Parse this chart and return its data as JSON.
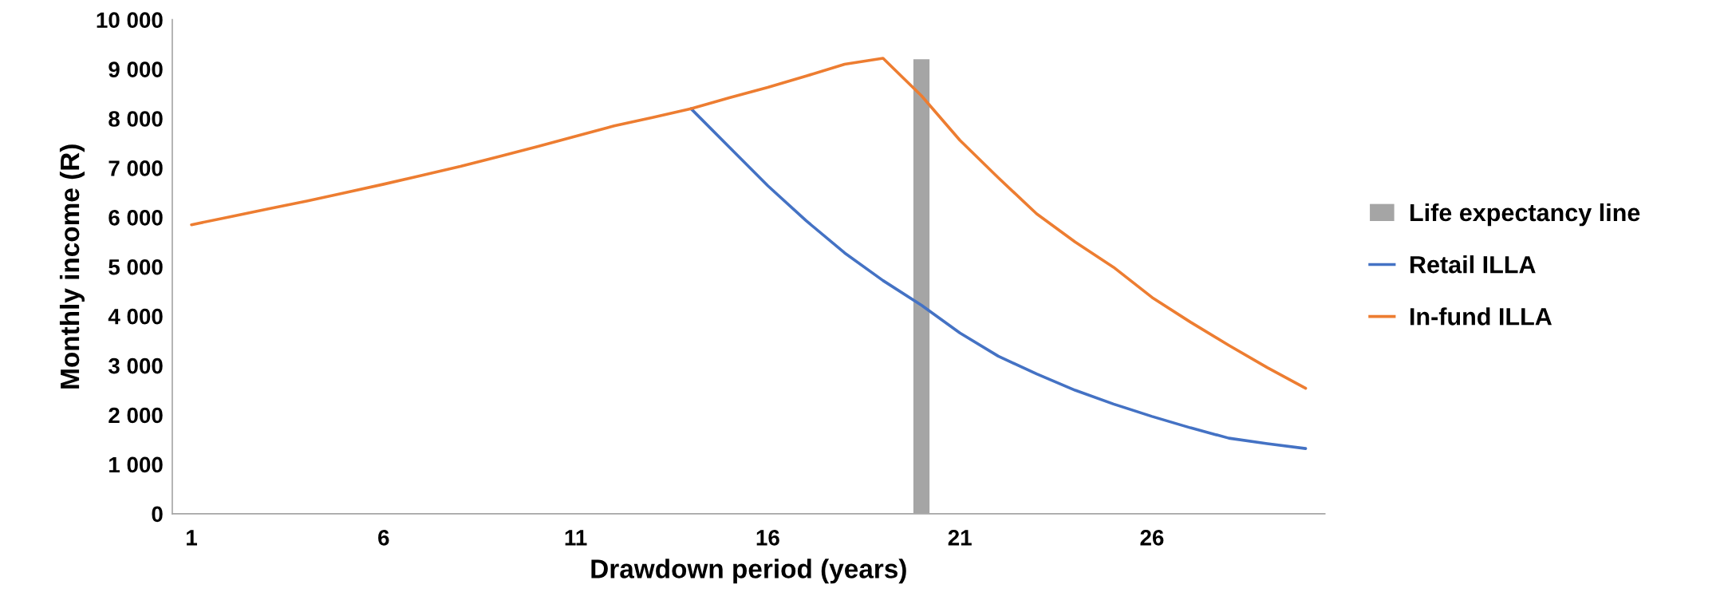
{
  "chart_data": {
    "type": "line",
    "xlabel": "Drawdown period (years)",
    "ylabel": "Monthly income (R)",
    "categories": [
      "1",
      null,
      null,
      null,
      null,
      "6",
      null,
      null,
      null,
      null,
      "11",
      null,
      null,
      null,
      null,
      "16",
      null,
      null,
      null,
      null,
      "21",
      null,
      null,
      null,
      null,
      "26",
      null,
      null,
      null,
      null
    ],
    "series": [
      {
        "name": "Life expectancy line",
        "type": "bar",
        "color": "#a5a5a5",
        "values": [
          null,
          null,
          null,
          null,
          null,
          null,
          null,
          null,
          null,
          null,
          null,
          null,
          null,
          null,
          null,
          null,
          null,
          null,
          null,
          9200,
          null,
          null,
          null,
          null,
          null,
          null,
          null,
          null,
          null,
          null
        ]
      },
      {
        "name": "Retail ILLA",
        "color": "#4472c4",
        "values": [
          null,
          null,
          null,
          null,
          null,
          null,
          null,
          null,
          null,
          null,
          null,
          null,
          null,
          8200,
          7420,
          6640,
          5930,
          5280,
          4720,
          4220,
          3660,
          3190,
          2830,
          2500,
          2220,
          1970,
          1740,
          1530,
          1420,
          1320
        ]
      },
      {
        "name": "In-fund ILLA",
        "color": "#ed7d31",
        "values": [
          5850,
          6010,
          6170,
          6330,
          6500,
          6670,
          6850,
          7030,
          7230,
          7430,
          7640,
          7850,
          8020,
          8200,
          8420,
          8630,
          8860,
          9100,
          9220,
          8460,
          7560,
          6800,
          6070,
          5500,
          4990,
          4380,
          3880,
          3410,
          2960,
          2540
        ]
      }
    ],
    "ylim": [
      0,
      10000
    ],
    "yticks": [
      0,
      {
        "value": 1000,
        "label": "1 000"
      },
      {
        "value": 2000,
        "label": "2 000"
      },
      {
        "value": 3000,
        "label": "3 000"
      },
      {
        "value": 4000,
        "label": "4 000"
      },
      {
        "value": 5000,
        "label": "5 000"
      },
      {
        "value": 6000,
        "label": "6 000"
      },
      {
        "value": 7000,
        "label": "7 000"
      },
      {
        "value": 8000,
        "label": "8 000"
      },
      {
        "value": 9000,
        "label": "9 000"
      },
      {
        "value": 10000,
        "label": "10 000"
      }
    ],
    "grid": false,
    "legend": "right",
    "marker": "none"
  }
}
